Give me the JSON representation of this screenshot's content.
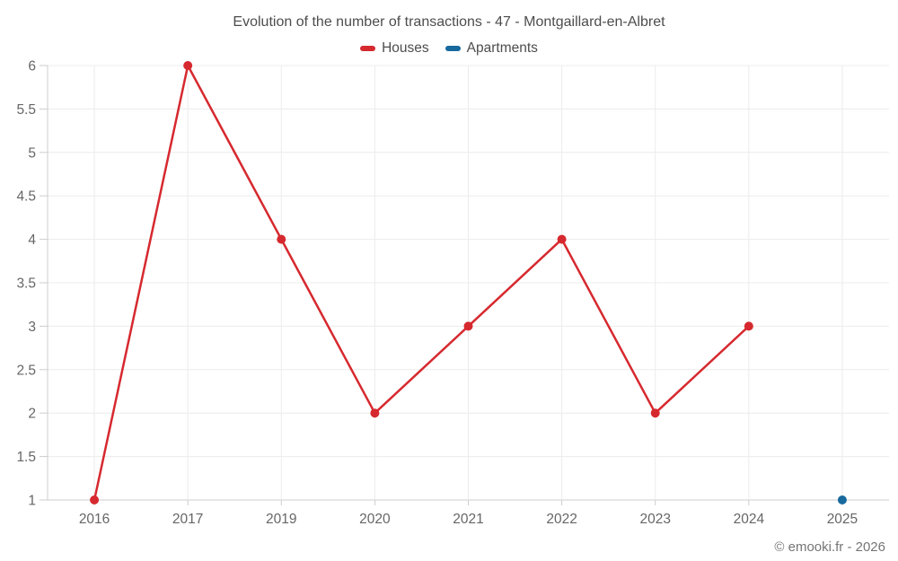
{
  "title": "Evolution of the number of transactions - 47 - Montgaillard-en-Albret",
  "legend": {
    "items": [
      {
        "label": "Houses",
        "color": "#d6292f"
      },
      {
        "label": "Apartments",
        "color": "#17699e"
      }
    ]
  },
  "footer": "© emooki.fr - 2026",
  "colors": {
    "houses": "#d6292f",
    "apartments": "#17699e",
    "grid": "#ececec",
    "axis": "#cccccc",
    "tick_label": "#666666",
    "title_text": "#4d4d4d"
  },
  "chart_data": {
    "type": "line",
    "title": "Evolution of the number of transactions - 47 - Montgaillard-en-Albret",
    "categories": [
      "2016",
      "2017",
      "2019",
      "2020",
      "2021",
      "2022",
      "2023",
      "2024",
      "2025"
    ],
    "series": [
      {
        "name": "Houses",
        "color": "#d6292f",
        "values": [
          1,
          6,
          4,
          2,
          3,
          4,
          2,
          3,
          null
        ]
      },
      {
        "name": "Apartments",
        "color": "#17699e",
        "values": [
          null,
          null,
          null,
          null,
          null,
          null,
          null,
          null,
          1
        ]
      }
    ],
    "xlabel": "",
    "ylabel": "",
    "ylim": [
      1,
      6
    ],
    "ytick_step": 0.5,
    "grid": true,
    "legend_position": "top"
  }
}
